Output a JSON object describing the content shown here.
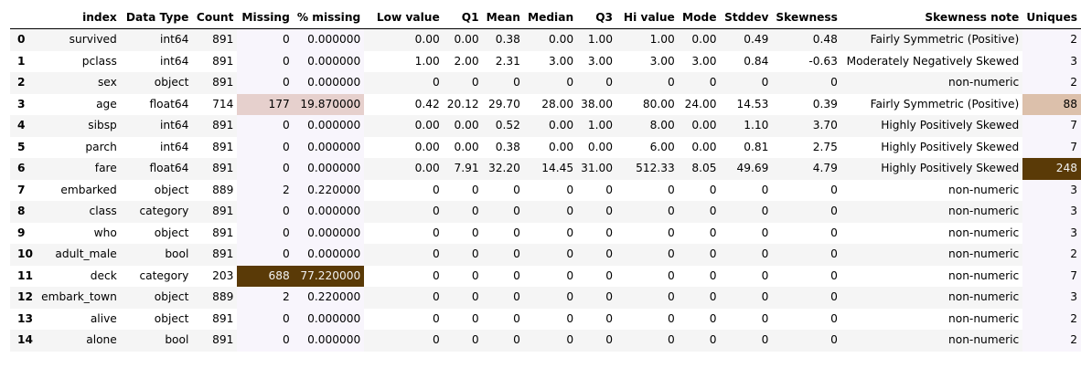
{
  "columns": [
    "index",
    "Data Type",
    "Count",
    "Missing",
    "% missing",
    "Low value",
    "Q1",
    "Mean",
    "Median",
    "Q3",
    "Hi value",
    "Mode",
    "Stddev",
    "Skewness",
    "Skewness note",
    "Uniques"
  ],
  "colors": {
    "stripe": "#f5f5f5",
    "white": "#ffffff",
    "light_tint": "#f8f5fc",
    "heat_low": "#e6d0cd",
    "heat_mid": "#dcc0ab",
    "heat_high": "#5a3a07",
    "heat_high_text": "#f1f1f1"
  },
  "rows": [
    {
      "idx": "0",
      "cells": [
        "survived",
        "int64",
        "891",
        "0",
        "0.000000",
        "0.00",
        "0.00",
        "0.38",
        "0.00",
        "1.00",
        "1.00",
        "0.00",
        "0.49",
        "0.48",
        "Fairly Symmetric (Positive)",
        "2"
      ]
    },
    {
      "idx": "1",
      "cells": [
        "pclass",
        "int64",
        "891",
        "0",
        "0.000000",
        "1.00",
        "2.00",
        "2.31",
        "3.00",
        "3.00",
        "3.00",
        "3.00",
        "0.84",
        "-0.63",
        "Moderately Negatively Skewed",
        "3"
      ]
    },
    {
      "idx": "2",
      "cells": [
        "sex",
        "object",
        "891",
        "0",
        "0.000000",
        "0",
        "0",
        "0",
        "0",
        "0",
        "0",
        "0",
        "0",
        "0",
        "non-numeric",
        "2"
      ]
    },
    {
      "idx": "3",
      "cells": [
        "age",
        "float64",
        "714",
        "177",
        "19.870000",
        "0.42",
        "20.12",
        "29.70",
        "28.00",
        "38.00",
        "80.00",
        "24.00",
        "14.53",
        "0.39",
        "Fairly Symmetric (Positive)",
        "88"
      ]
    },
    {
      "idx": "4",
      "cells": [
        "sibsp",
        "int64",
        "891",
        "0",
        "0.000000",
        "0.00",
        "0.00",
        "0.52",
        "0.00",
        "1.00",
        "8.00",
        "0.00",
        "1.10",
        "3.70",
        "Highly Positively Skewed",
        "7"
      ]
    },
    {
      "idx": "5",
      "cells": [
        "parch",
        "int64",
        "891",
        "0",
        "0.000000",
        "0.00",
        "0.00",
        "0.38",
        "0.00",
        "0.00",
        "6.00",
        "0.00",
        "0.81",
        "2.75",
        "Highly Positively Skewed",
        "7"
      ]
    },
    {
      "idx": "6",
      "cells": [
        "fare",
        "float64",
        "891",
        "0",
        "0.000000",
        "0.00",
        "7.91",
        "32.20",
        "14.45",
        "31.00",
        "512.33",
        "8.05",
        "49.69",
        "4.79",
        "Highly Positively Skewed",
        "248"
      ]
    },
    {
      "idx": "7",
      "cells": [
        "embarked",
        "object",
        "889",
        "2",
        "0.220000",
        "0",
        "0",
        "0",
        "0",
        "0",
        "0",
        "0",
        "0",
        "0",
        "non-numeric",
        "3"
      ]
    },
    {
      "idx": "8",
      "cells": [
        "class",
        "category",
        "891",
        "0",
        "0.000000",
        "0",
        "0",
        "0",
        "0",
        "0",
        "0",
        "0",
        "0",
        "0",
        "non-numeric",
        "3"
      ]
    },
    {
      "idx": "9",
      "cells": [
        "who",
        "object",
        "891",
        "0",
        "0.000000",
        "0",
        "0",
        "0",
        "0",
        "0",
        "0",
        "0",
        "0",
        "0",
        "non-numeric",
        "3"
      ]
    },
    {
      "idx": "10",
      "cells": [
        "adult_male",
        "bool",
        "891",
        "0",
        "0.000000",
        "0",
        "0",
        "0",
        "0",
        "0",
        "0",
        "0",
        "0",
        "0",
        "non-numeric",
        "2"
      ]
    },
    {
      "idx": "11",
      "cells": [
        "deck",
        "category",
        "203",
        "688",
        "77.220000",
        "0",
        "0",
        "0",
        "0",
        "0",
        "0",
        "0",
        "0",
        "0",
        "non-numeric",
        "7"
      ]
    },
    {
      "idx": "12",
      "cells": [
        "embark_town",
        "object",
        "889",
        "2",
        "0.220000",
        "0",
        "0",
        "0",
        "0",
        "0",
        "0",
        "0",
        "0",
        "0",
        "non-numeric",
        "3"
      ]
    },
    {
      "idx": "13",
      "cells": [
        "alive",
        "object",
        "891",
        "0",
        "0.000000",
        "0",
        "0",
        "0",
        "0",
        "0",
        "0",
        "0",
        "0",
        "0",
        "non-numeric",
        "2"
      ]
    },
    {
      "idx": "14",
      "cells": [
        "alone",
        "bool",
        "891",
        "0",
        "0.000000",
        "0",
        "0",
        "0",
        "0",
        "0",
        "0",
        "0",
        "0",
        "0",
        "non-numeric",
        "2"
      ]
    }
  ],
  "highlights": [
    {
      "row": 3,
      "cols": [
        3,
        4
      ],
      "color": "heat_low"
    },
    {
      "row": 11,
      "cols": [
        3,
        4
      ],
      "color": "heat_high"
    },
    {
      "row": 3,
      "cols": [
        15
      ],
      "color": "heat_mid"
    },
    {
      "row": 6,
      "cols": [
        15
      ],
      "color": "heat_high"
    }
  ],
  "tinted_columns": [
    3,
    4,
    15
  ]
}
